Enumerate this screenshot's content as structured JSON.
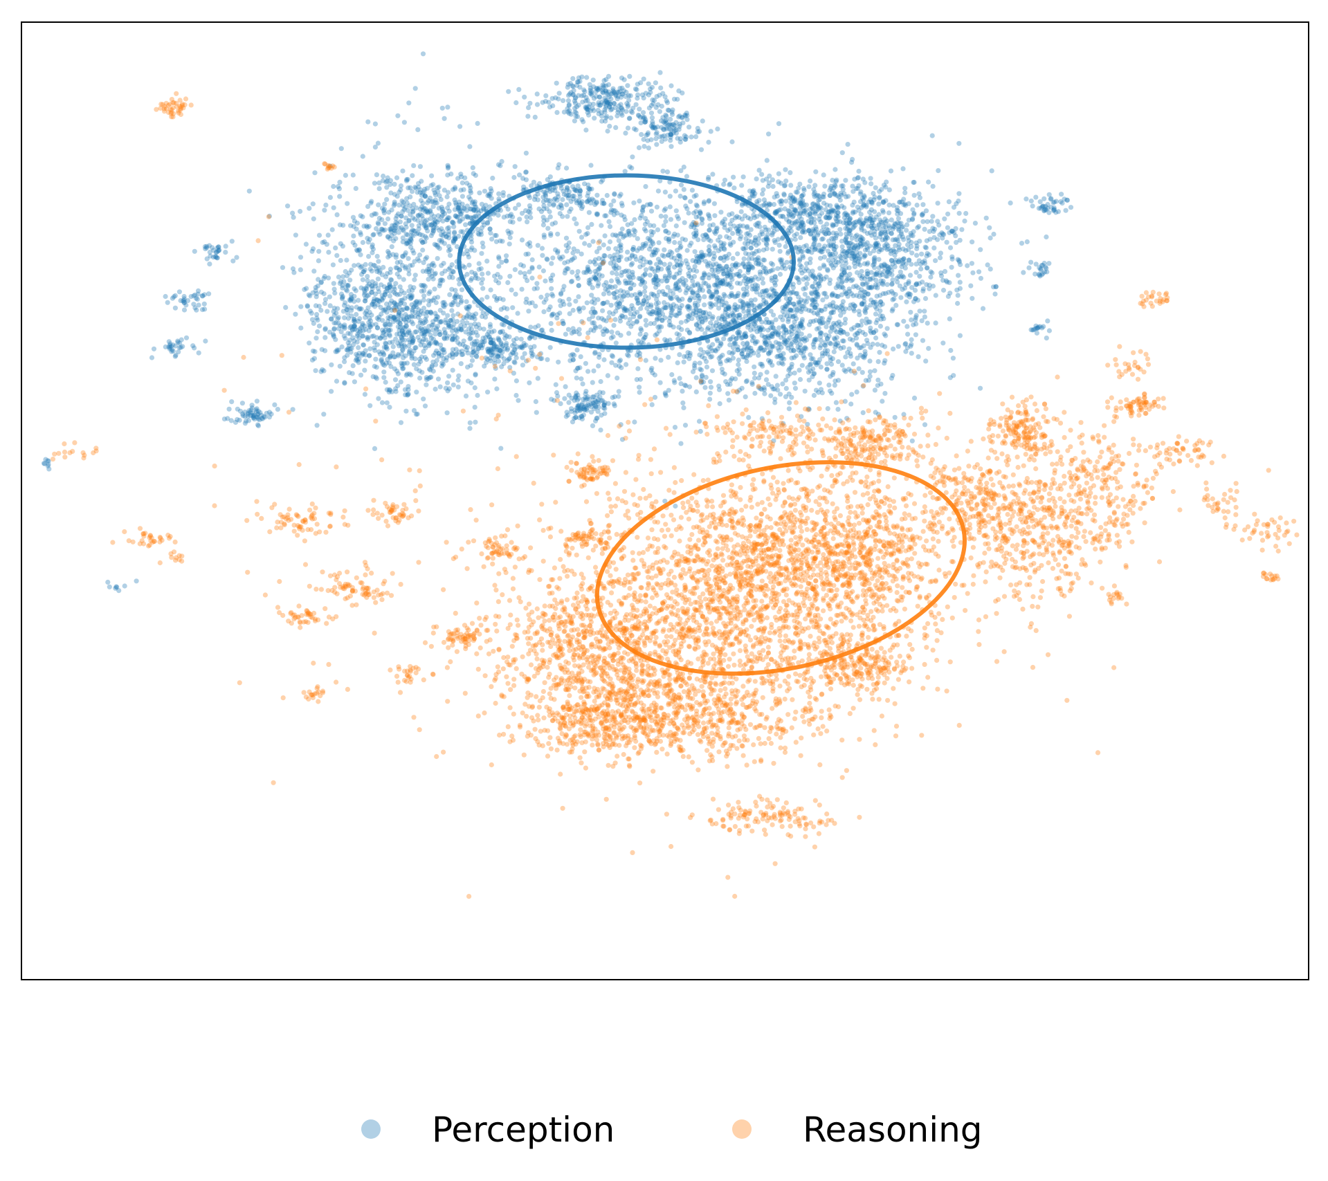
{
  "chart_data": {
    "type": "scatter",
    "title": "",
    "xlabel": "",
    "ylabel": "",
    "xlim": [
      -50,
      50
    ],
    "ylim": [
      -50,
      50
    ],
    "axes_ticks": false,
    "grid": false,
    "legend": {
      "placement": "bottom-center",
      "columns": 2
    },
    "series": [
      {
        "name": "Perception",
        "color": "#1f77b4",
        "marker_alpha": 0.35,
        "ellipse": {
          "cx": -3,
          "cy": 25,
          "rx": 13,
          "ry": 9,
          "angle": 0
        },
        "clusters": [
          {
            "cx": 3,
            "cy": 22,
            "sx": 8,
            "sy": 5.5,
            "n": 2200
          },
          {
            "cx": -20,
            "cy": 24,
            "sx": 4,
            "sy": 6,
            "n": 700
          },
          {
            "cx": -19,
            "cy": 16,
            "sx": 3.5,
            "sy": 3,
            "n": 350
          },
          {
            "cx": -23,
            "cy": 20,
            "sx": 2.5,
            "sy": 3,
            "n": 250
          },
          {
            "cx": 17,
            "cy": 26,
            "sx": 3.5,
            "sy": 3.5,
            "n": 550
          },
          {
            "cx": 10,
            "cy": 17,
            "sx": 4,
            "sy": 3,
            "n": 400
          },
          {
            "cx": 11,
            "cy": 30,
            "sx": 4,
            "sy": 2,
            "n": 400
          },
          {
            "cx": -17,
            "cy": 30,
            "sx": 3,
            "sy": 1.8,
            "n": 300
          },
          {
            "cx": -8,
            "cy": 32,
            "sx": 2,
            "sy": 1.2,
            "n": 140
          },
          {
            "cx": -5,
            "cy": 42,
            "sx": 2.5,
            "sy": 1.2,
            "n": 250
          },
          {
            "cx": 0,
            "cy": 39,
            "sx": 1.5,
            "sy": 1.0,
            "n": 120
          },
          {
            "cx": -6,
            "cy": 10,
            "sx": 1.2,
            "sy": 0.8,
            "n": 100
          },
          {
            "cx": -13,
            "cy": 16,
            "sx": 1.5,
            "sy": 0.8,
            "n": 100
          },
          {
            "cx": -32,
            "cy": 9,
            "sx": 1.0,
            "sy": 0.7,
            "n": 60
          },
          {
            "cx": -37,
            "cy": 21,
            "sx": 0.8,
            "sy": 0.6,
            "n": 35
          },
          {
            "cx": -38,
            "cy": 16,
            "sx": 0.7,
            "sy": 0.4,
            "n": 30
          },
          {
            "cx": -35,
            "cy": 26,
            "sx": 0.7,
            "sy": 0.5,
            "n": 30
          },
          {
            "cx": 30,
            "cy": 31,
            "sx": 0.8,
            "sy": 0.6,
            "n": 40
          },
          {
            "cx": 29,
            "cy": 24,
            "sx": 0.5,
            "sy": 0.6,
            "n": 20
          },
          {
            "cx": 29,
            "cy": 18,
            "sx": 0.4,
            "sy": 0.3,
            "n": 15
          },
          {
            "cx": -48,
            "cy": 4,
            "sx": 0.3,
            "sy": 0.3,
            "n": 8
          },
          {
            "cx": -43,
            "cy": -9,
            "sx": 0.5,
            "sy": 0.3,
            "n": 8
          }
        ]
      },
      {
        "name": "Reasoning",
        "color": "#ff7f0e",
        "marker_alpha": 0.35,
        "ellipse": {
          "cx": 9,
          "cy": -7,
          "rx": 14.5,
          "ry": 10.5,
          "angle": -12
        },
        "clusters": [
          {
            "cx": 4,
            "cy": -11,
            "sx": 7.5,
            "sy": 6,
            "n": 1800
          },
          {
            "cx": -6,
            "cy": -16,
            "sx": 4,
            "sy": 3,
            "n": 500
          },
          {
            "cx": 2,
            "cy": -22,
            "sx": 5,
            "sy": 2.5,
            "n": 500
          },
          {
            "cx": -5,
            "cy": -23,
            "sx": 3.5,
            "sy": 2,
            "n": 350
          },
          {
            "cx": 10,
            "cy": -5,
            "sx": 5,
            "sy": 4,
            "n": 700
          },
          {
            "cx": 17,
            "cy": -5,
            "sx": 3,
            "sy": 4,
            "n": 300
          },
          {
            "cx": 15,
            "cy": -17,
            "sx": 2,
            "sy": 1.5,
            "n": 200
          },
          {
            "cx": 29,
            "cy": -2,
            "sx": 3.5,
            "sy": 4,
            "n": 500
          },
          {
            "cx": 34,
            "cy": 2,
            "sx": 2,
            "sy": 3.5,
            "n": 150
          },
          {
            "cx": 28,
            "cy": 7,
            "sx": 1.2,
            "sy": 1.5,
            "n": 150
          },
          {
            "cx": 16,
            "cy": 6,
            "sx": 2,
            "sy": 1.5,
            "n": 200
          },
          {
            "cx": 9,
            "cy": 7,
            "sx": 2.5,
            "sy": 1.2,
            "n": 120
          },
          {
            "cx": 24,
            "cy": 0,
            "sx": 2,
            "sy": 2,
            "n": 150
          },
          {
            "cx": 8,
            "cy": -33,
            "sx": 2.5,
            "sy": 1.0,
            "n": 120
          },
          {
            "cx": -6,
            "cy": 3,
            "sx": 1.0,
            "sy": 0.6,
            "n": 60
          },
          {
            "cx": -21,
            "cy": -1,
            "sx": 1.0,
            "sy": 0.6,
            "n": 40
          },
          {
            "cx": -28,
            "cy": -2,
            "sx": 1.5,
            "sy": 0.7,
            "n": 60
          },
          {
            "cx": -24,
            "cy": -9,
            "sx": 1.2,
            "sy": 1.0,
            "n": 70
          },
          {
            "cx": -16,
            "cy": -14,
            "sx": 1.0,
            "sy": 0.6,
            "n": 50
          },
          {
            "cx": -13,
            "cy": -5,
            "sx": 0.8,
            "sy": 0.5,
            "n": 40
          },
          {
            "cx": -6,
            "cy": -4,
            "sx": 1.0,
            "sy": 0.6,
            "n": 50
          },
          {
            "cx": -28,
            "cy": -12,
            "sx": 1.0,
            "sy": 0.6,
            "n": 40
          },
          {
            "cx": -20,
            "cy": -18,
            "sx": 0.8,
            "sy": 0.5,
            "n": 25
          },
          {
            "cx": -38,
            "cy": 41,
            "sx": 0.7,
            "sy": 0.5,
            "n": 40
          },
          {
            "cx": -26,
            "cy": 35,
            "sx": 0.3,
            "sy": 0.3,
            "n": 10
          },
          {
            "cx": 37,
            "cy": 10,
            "sx": 1.0,
            "sy": 0.6,
            "n": 60
          },
          {
            "cx": 40,
            "cy": 5,
            "sx": 1.5,
            "sy": 1.0,
            "n": 50
          },
          {
            "cx": 47,
            "cy": -3,
            "sx": 1.2,
            "sy": 0.8,
            "n": 40
          },
          {
            "cx": 43,
            "cy": 0,
            "sx": 1.0,
            "sy": 1.0,
            "n": 30
          },
          {
            "cx": 36,
            "cy": 14,
            "sx": 1.0,
            "sy": 1.0,
            "n": 25
          },
          {
            "cx": 38,
            "cy": 21,
            "sx": 1.0,
            "sy": 0.4,
            "n": 25
          },
          {
            "cx": 35,
            "cy": -10,
            "sx": 0.6,
            "sy": 0.4,
            "n": 15
          },
          {
            "cx": 47,
            "cy": -8,
            "sx": 0.4,
            "sy": 0.3,
            "n": 15
          },
          {
            "cx": -40,
            "cy": -4,
            "sx": 1.0,
            "sy": 0.4,
            "n": 30
          },
          {
            "cx": -46,
            "cy": 5,
            "sx": 0.8,
            "sy": 0.5,
            "n": 15
          },
          {
            "cx": -38,
            "cy": -6,
            "sx": 0.5,
            "sy": 0.3,
            "n": 10
          },
          {
            "cx": -27,
            "cy": -20,
            "sx": 1.0,
            "sy": 0.4,
            "n": 20
          }
        ],
        "scatter_extra": [
          {
            "cx": -4,
            "cy": -2,
            "sx": 18,
            "sy": 14,
            "n": 200
          }
        ]
      }
    ]
  }
}
